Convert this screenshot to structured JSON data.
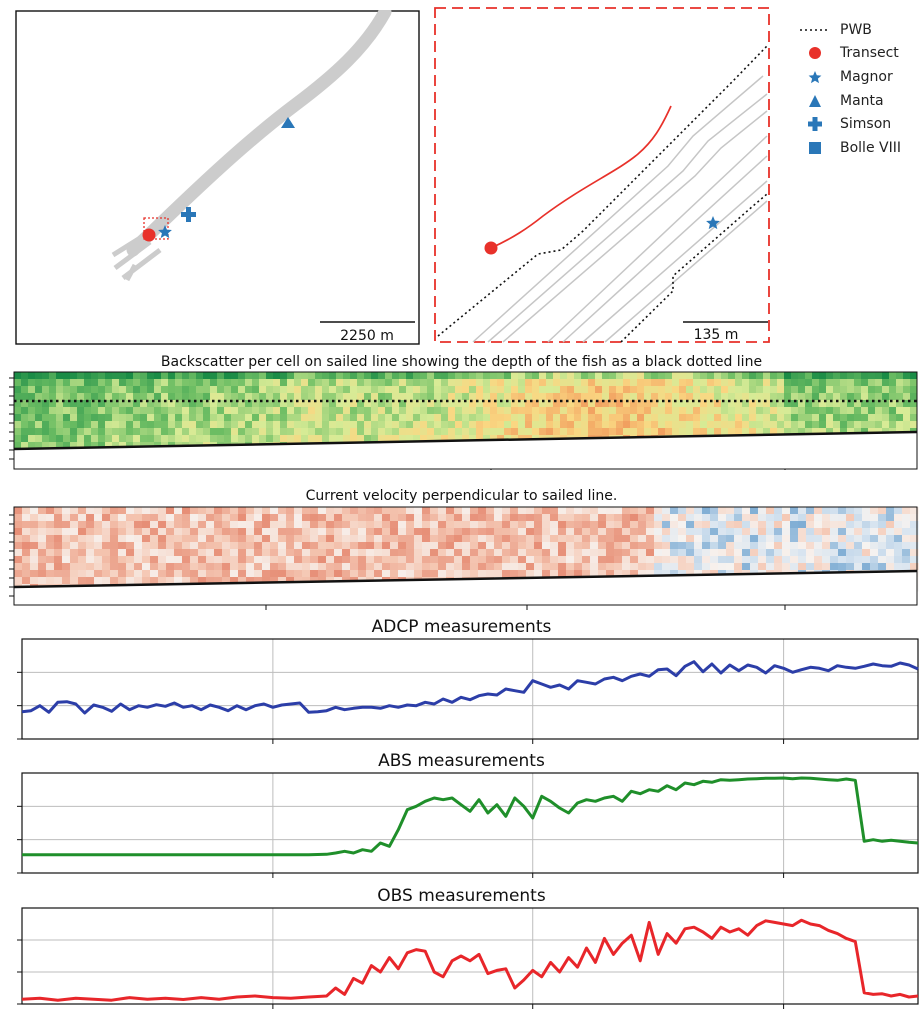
{
  "map_panel": {
    "scale_label": "2250 m"
  },
  "zoom_panel": {
    "scale_label": "135 m"
  },
  "legend": {
    "items": [
      {
        "label": "PWB",
        "icon": "dotted-line",
        "color": "#111111"
      },
      {
        "label": "Transect",
        "icon": "circle",
        "color": "#e8312a"
      },
      {
        "label": "Magnor",
        "icon": "star",
        "color": "#2a77b8"
      },
      {
        "label": "Manta",
        "icon": "triangle",
        "color": "#2a77b8"
      },
      {
        "label": "Simson",
        "icon": "plus",
        "color": "#2a77b8"
      },
      {
        "label": "Bolle VIII",
        "icon": "square",
        "color": "#2a77b8"
      }
    ]
  },
  "backscatter": {
    "title": "Backscatter per cell on sailed line showing the depth of the fish as a black dotted line",
    "colormap": "green-yellow-orange"
  },
  "velocity": {
    "title": "Current velocity perpendicular to sailed line.",
    "colormap": "red-white-blue"
  },
  "colors": {
    "adcp": "#2c3ea8",
    "abs": "#1f8f2a",
    "obs": "#e8262a",
    "transect": "#e8312a",
    "markers": "#2a77b8",
    "track": "#c8c8c8"
  },
  "chart_data": [
    {
      "type": "line",
      "title": "ADCP measurements",
      "xlabel": "",
      "ylabel": "",
      "xlim": [
        0,
        100
      ],
      "ylim": [
        0,
        3
      ],
      "grid": true,
      "x": [
        0,
        1,
        2,
        3,
        4,
        5,
        6,
        7,
        8,
        9,
        10,
        11,
        12,
        13,
        14,
        15,
        16,
        17,
        18,
        19,
        20,
        21,
        22,
        23,
        24,
        25,
        26,
        27,
        28,
        29,
        30,
        31,
        32,
        33,
        34,
        35,
        36,
        37,
        38,
        39,
        40,
        41,
        42,
        43,
        44,
        45,
        46,
        47,
        48,
        49,
        50,
        51,
        52,
        53,
        54,
        55,
        56,
        57,
        58,
        59,
        60,
        61,
        62,
        63,
        64,
        65,
        66,
        67,
        68,
        69,
        70,
        71,
        72,
        73,
        74,
        75,
        76,
        77,
        78,
        79,
        80,
        81,
        82,
        83,
        84,
        85,
        86,
        87,
        88,
        89,
        90,
        91,
        92,
        93,
        94,
        95,
        96,
        97,
        98,
        99,
        100
      ],
      "series": [
        {
          "values": [
            0.82,
            0.85,
            1.0,
            0.8,
            1.1,
            1.12,
            1.05,
            0.78,
            1.02,
            0.95,
            0.83,
            1.05,
            0.88,
            1.0,
            0.95,
            1.03,
            0.98,
            1.08,
            0.95,
            1.0,
            0.88,
            1.02,
            0.95,
            0.85,
            1.0,
            0.88,
            1.0,
            1.05,
            0.95,
            1.02,
            1.05,
            1.08,
            0.8,
            0.82,
            0.85,
            0.95,
            0.88,
            0.92,
            0.95,
            0.95,
            0.92,
            1.0,
            0.95,
            1.02,
            1.0,
            1.1,
            1.05,
            1.2,
            1.1,
            1.25,
            1.18,
            1.3,
            1.35,
            1.32,
            1.5,
            1.45,
            1.4,
            1.75,
            1.65,
            1.55,
            1.62,
            1.5,
            1.75,
            1.7,
            1.65,
            1.8,
            1.85,
            1.75,
            1.88,
            1.95,
            1.88,
            2.08,
            2.1,
            1.9,
            2.18,
            2.32,
            2.02,
            2.25,
            1.98,
            2.22,
            2.05,
            2.22,
            2.15,
            1.98,
            2.2,
            2.12,
            2.0,
            2.08,
            2.15,
            2.12,
            2.05,
            2.2,
            2.15,
            2.12,
            2.18,
            2.25,
            2.2,
            2.18,
            2.28,
            2.22,
            2.1
          ]
        }
      ]
    },
    {
      "type": "line",
      "title": "ABS measurements",
      "xlabel": "",
      "ylabel": "",
      "xlim": [
        0,
        100
      ],
      "ylim": [
        0,
        3
      ],
      "grid": true,
      "x": [
        0,
        2,
        4,
        6,
        8,
        10,
        12,
        14,
        16,
        18,
        20,
        22,
        24,
        26,
        28,
        30,
        32,
        34,
        35,
        36,
        37,
        38,
        39,
        40,
        41,
        42,
        43,
        44,
        45,
        46,
        47,
        48,
        49,
        50,
        51,
        52,
        53,
        54,
        55,
        56,
        57,
        58,
        59,
        60,
        61,
        62,
        63,
        64,
        65,
        66,
        67,
        68,
        69,
        70,
        71,
        72,
        73,
        74,
        75,
        76,
        77,
        78,
        79,
        80,
        81,
        82,
        83,
        84,
        85,
        86,
        87,
        88,
        89,
        90,
        91,
        92,
        93,
        94,
        95,
        96,
        97,
        98,
        99,
        100
      ],
      "series": [
        {
          "values": [
            0.55,
            0.55,
            0.55,
            0.55,
            0.55,
            0.55,
            0.55,
            0.55,
            0.55,
            0.55,
            0.55,
            0.55,
            0.55,
            0.55,
            0.55,
            0.55,
            0.55,
            0.56,
            0.6,
            0.65,
            0.6,
            0.7,
            0.65,
            0.9,
            0.8,
            1.3,
            1.9,
            2.0,
            2.15,
            2.25,
            2.2,
            2.25,
            2.05,
            1.85,
            2.2,
            1.8,
            2.05,
            1.7,
            2.25,
            2.0,
            1.65,
            2.3,
            2.15,
            1.95,
            1.8,
            2.1,
            2.2,
            2.15,
            2.25,
            2.3,
            2.15,
            2.45,
            2.38,
            2.5,
            2.45,
            2.62,
            2.5,
            2.7,
            2.65,
            2.75,
            2.72,
            2.8,
            2.78,
            2.8,
            2.82,
            2.83,
            2.84,
            2.84,
            2.85,
            2.83,
            2.85,
            2.84,
            2.82,
            2.8,
            2.78,
            2.82,
            2.78,
            0.95,
            1.0,
            0.95,
            0.98,
            0.95,
            0.92,
            0.9
          ]
        }
      ]
    },
    {
      "type": "line",
      "title": "OBS measurements",
      "xlabel": "",
      "ylabel": "",
      "xlim": [
        0,
        100
      ],
      "ylim": [
        0,
        3
      ],
      "grid": true,
      "x": [
        0,
        2,
        4,
        6,
        8,
        10,
        12,
        14,
        16,
        18,
        20,
        22,
        24,
        26,
        28,
        30,
        32,
        34,
        35,
        36,
        37,
        38,
        39,
        40,
        41,
        42,
        43,
        44,
        45,
        46,
        47,
        48,
        49,
        50,
        51,
        52,
        53,
        54,
        55,
        56,
        57,
        58,
        59,
        60,
        61,
        62,
        63,
        64,
        65,
        66,
        67,
        68,
        69,
        70,
        71,
        72,
        73,
        74,
        75,
        76,
        77,
        78,
        79,
        80,
        81,
        82,
        83,
        84,
        85,
        86,
        87,
        88,
        89,
        90,
        91,
        92,
        93,
        94,
        95,
        96,
        97,
        98,
        99,
        100
      ],
      "series": [
        {
          "values": [
            0.15,
            0.18,
            0.12,
            0.18,
            0.15,
            0.12,
            0.2,
            0.15,
            0.18,
            0.14,
            0.2,
            0.15,
            0.22,
            0.25,
            0.2,
            0.18,
            0.22,
            0.25,
            0.5,
            0.3,
            0.8,
            0.65,
            1.2,
            1.0,
            1.45,
            1.1,
            1.6,
            1.7,
            1.65,
            1.0,
            0.85,
            1.35,
            1.5,
            1.35,
            1.55,
            0.95,
            1.05,
            1.1,
            0.5,
            0.75,
            1.05,
            0.85,
            1.3,
            1.0,
            1.45,
            1.15,
            1.75,
            1.3,
            2.05,
            1.55,
            1.9,
            2.15,
            1.35,
            2.55,
            1.55,
            2.2,
            1.9,
            2.35,
            2.4,
            2.25,
            2.05,
            2.4,
            2.25,
            2.35,
            2.15,
            2.45,
            2.6,
            2.55,
            2.5,
            2.45,
            2.62,
            2.5,
            2.45,
            2.3,
            2.2,
            2.05,
            1.95,
            0.35,
            0.3,
            0.32,
            0.25,
            0.3,
            0.22,
            0.25
          ]
        }
      ]
    }
  ]
}
